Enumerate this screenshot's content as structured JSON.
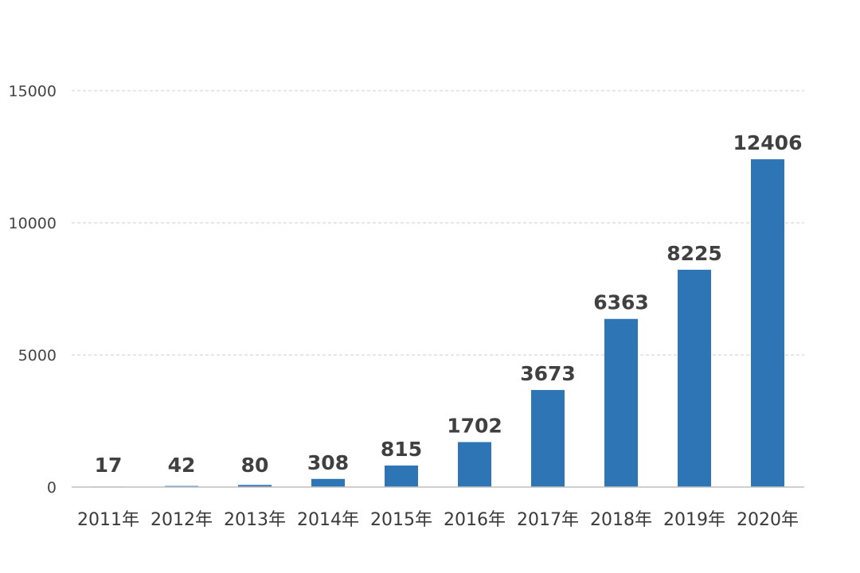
{
  "chart_data": {
    "type": "bar",
    "categories": [
      "2011年",
      "2012年",
      "2013年",
      "2014年",
      "2015年",
      "2016年",
      "2017年",
      "2018年",
      "2019年",
      "2020年"
    ],
    "values": [
      17,
      42,
      80,
      308,
      815,
      1702,
      3673,
      6363,
      8225,
      12406
    ],
    "data_labels": [
      "17",
      "42",
      "80",
      "308",
      "815",
      "1702",
      "3673",
      "6363",
      "8225",
      "12406"
    ],
    "ylim": [
      0,
      15000
    ],
    "yticks": [
      0,
      5000,
      10000,
      15000
    ],
    "ytick_labels": [
      "0",
      "5000",
      "10000",
      "15000"
    ],
    "grid": true,
    "legend": "none",
    "bar_color": "#2e75b6"
  }
}
